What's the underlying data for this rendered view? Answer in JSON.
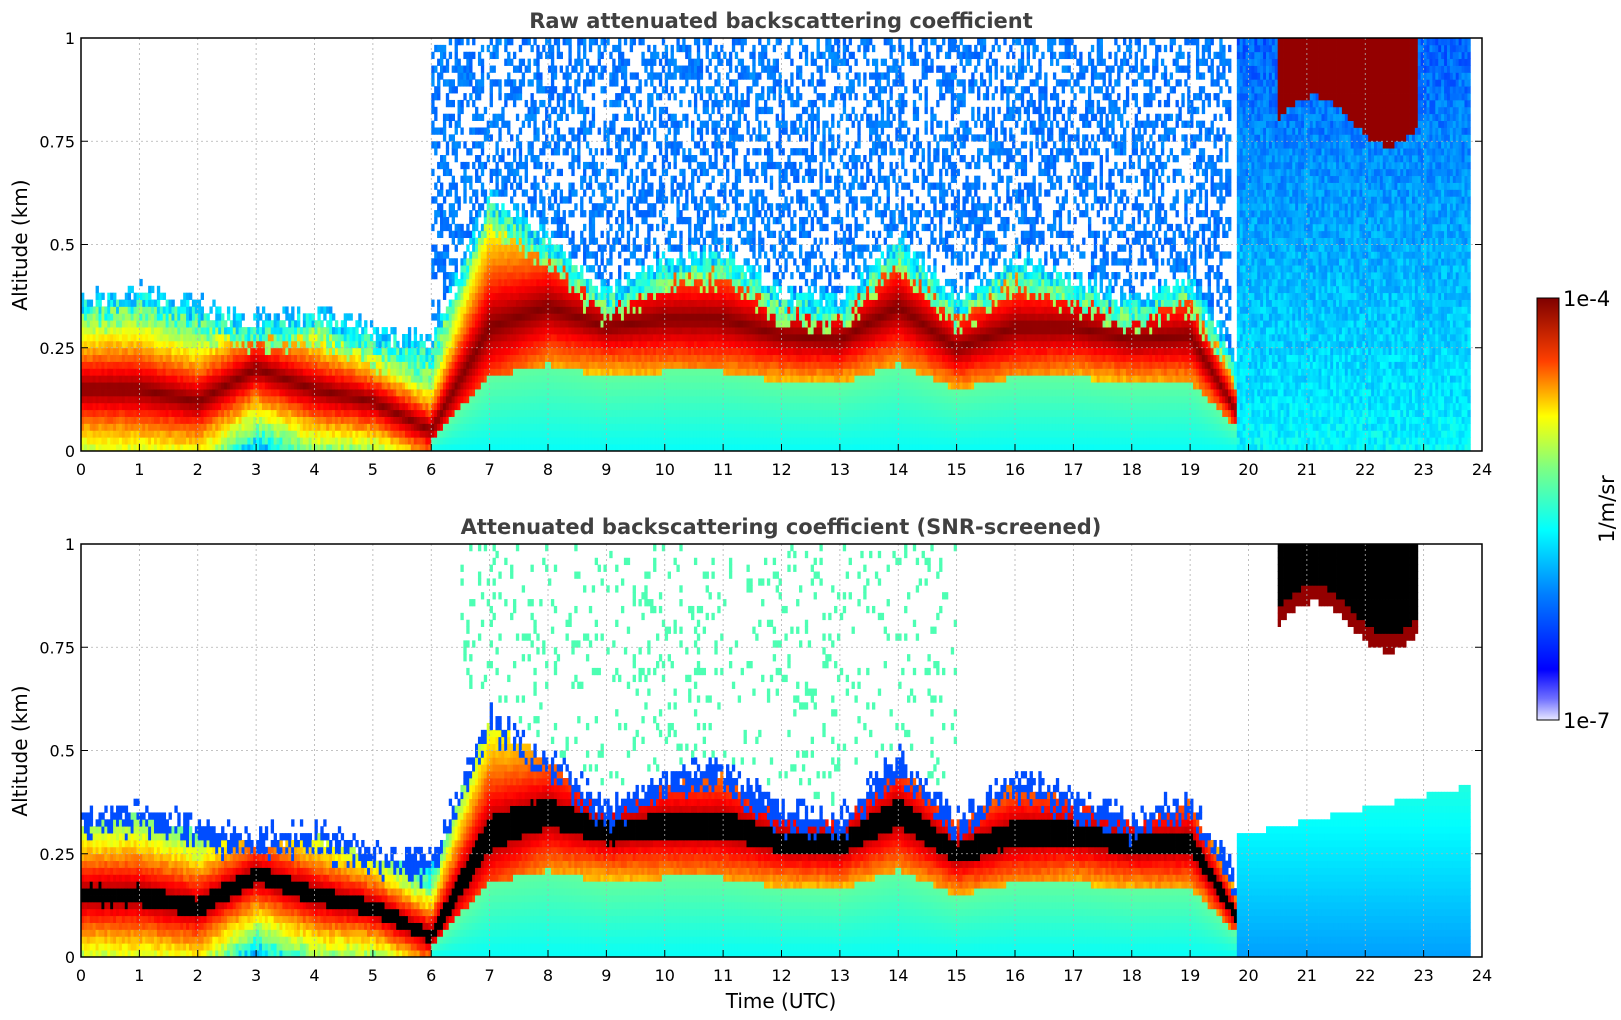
{
  "chart_data": [
    {
      "type": "heatmap",
      "title": "Raw attenuated backscattering coefficient",
      "xlabel": "",
      "ylabel": "Altitude (km)",
      "xlim": [
        0,
        24
      ],
      "ylim": [
        0,
        1
      ],
      "xticks": [
        "0",
        "1",
        "2",
        "3",
        "4",
        "5",
        "6",
        "7",
        "8",
        "9",
        "10",
        "11",
        "12",
        "13",
        "14",
        "15",
        "16",
        "17",
        "18",
        "19",
        "20",
        "21",
        "22",
        "23",
        "24"
      ],
      "yticks": [
        "0",
        "0.25",
        "0.5",
        "0.75",
        "1"
      ],
      "grid": true,
      "screened": false,
      "layer_top_km": [
        {
          "t": 0,
          "top": 0.3,
          "peak": 0.15
        },
        {
          "t": 1,
          "top": 0.32,
          "peak": 0.15
        },
        {
          "t": 2,
          "top": 0.28,
          "peak": 0.12
        },
        {
          "t": 3,
          "top": 0.25,
          "peak": 0.2
        },
        {
          "t": 4,
          "top": 0.27,
          "peak": 0.15
        },
        {
          "t": 5,
          "top": 0.22,
          "peak": 0.12
        },
        {
          "t": 6,
          "top": 0.2,
          "peak": 0.05
        },
        {
          "t": 7,
          "top": 0.55,
          "peak": 0.3
        },
        {
          "t": 8,
          "top": 0.45,
          "peak": 0.35
        },
        {
          "t": 9,
          "top": 0.32,
          "peak": 0.3
        },
        {
          "t": 10,
          "top": 0.4,
          "peak": 0.32
        },
        {
          "t": 11,
          "top": 0.42,
          "peak": 0.32
        },
        {
          "t": 12,
          "top": 0.32,
          "peak": 0.28
        },
        {
          "t": 13,
          "top": 0.3,
          "peak": 0.27
        },
        {
          "t": 14,
          "top": 0.45,
          "peak": 0.35
        },
        {
          "t": 15,
          "top": 0.3,
          "peak": 0.25
        },
        {
          "t": 16,
          "top": 0.4,
          "peak": 0.3
        },
        {
          "t": 17,
          "top": 0.35,
          "peak": 0.3
        },
        {
          "t": 18,
          "top": 0.3,
          "peak": 0.27
        },
        {
          "t": 19,
          "top": 0.35,
          "peak": 0.28
        },
        {
          "t": 20,
          "top": 0.1,
          "peak": 0.05
        },
        {
          "t": 21,
          "top": 0.05,
          "peak": 0.05
        },
        {
          "t": 22,
          "top": 0.05,
          "peak": 0.05
        },
        {
          "t": 23,
          "top": 0.05,
          "peak": 0.05
        }
      ],
      "upper_cloud": {
        "t_start": 20.5,
        "t_end": 22.9,
        "base_km": 0.8,
        "top_km": 1.0
      }
    },
    {
      "type": "heatmap",
      "title": "Attenuated backscattering coefficient (SNR-screened)",
      "xlabel": "Time (UTC)",
      "ylabel": "Altitude (km)",
      "xlim": [
        0,
        24
      ],
      "ylim": [
        0,
        1
      ],
      "xticks": [
        "0",
        "1",
        "2",
        "3",
        "4",
        "5",
        "6",
        "7",
        "8",
        "9",
        "10",
        "11",
        "12",
        "13",
        "14",
        "15",
        "16",
        "17",
        "18",
        "19",
        "20",
        "21",
        "22",
        "23",
        "24"
      ],
      "yticks": [
        "0",
        "0.25",
        "0.5",
        "0.75",
        "1"
      ],
      "grid": true,
      "screened": true,
      "upper_cloud": {
        "t_start": 20.5,
        "t_end": 22.9,
        "base_km": 0.8,
        "top_km": 1.0
      }
    }
  ],
  "colorbar": {
    "label": "1/m/sr",
    "max_label": "1e-4",
    "min_label": "1e-7",
    "colormap": "jet",
    "scale": "log"
  },
  "colors": {
    "low": "#00007f",
    "mid_blue": "#0080ff",
    "cyan": "#00ffff",
    "yellow": "#ffff00",
    "red": "#ff0000",
    "high": "#7f0000",
    "saturated_screened": "#000000"
  }
}
